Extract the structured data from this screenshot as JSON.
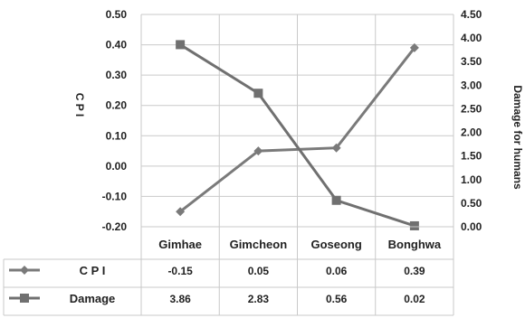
{
  "chart_data": {
    "type": "line",
    "categories": [
      "Gimhae",
      "Gimcheon",
      "Goseong",
      "Bonghwa"
    ],
    "series": [
      {
        "name": "C P I",
        "values": [
          -0.15,
          0.05,
          0.06,
          0.39
        ],
        "value_labels": [
          "-0.15",
          "0.05",
          "0.06",
          "0.39"
        ],
        "axis": "left",
        "marker": "diamond",
        "color": "#7a7a7a"
      },
      {
        "name": "Damage",
        "values": [
          3.86,
          2.83,
          0.56,
          0.02
        ],
        "value_labels": [
          "3.86",
          "2.83",
          "0.56",
          "0.02"
        ],
        "axis": "right",
        "marker": "square",
        "color": "#707070"
      }
    ],
    "ylabel": "C P I",
    "y2label": "Damage for humans",
    "ylim": [
      -0.2,
      0.5
    ],
    "y2lim": [
      0,
      4.5
    ],
    "yticks": [
      "0.50",
      "0.40",
      "0.30",
      "0.20",
      "0.10",
      "0.00",
      "-0.10",
      "-0.20"
    ],
    "y2ticks": [
      "4.50",
      "4.00",
      "3.50",
      "3.00",
      "2.50",
      "2.00",
      "1.50",
      "1.00",
      "0.50",
      "0.00"
    ],
    "grid": true,
    "data_table": true
  }
}
